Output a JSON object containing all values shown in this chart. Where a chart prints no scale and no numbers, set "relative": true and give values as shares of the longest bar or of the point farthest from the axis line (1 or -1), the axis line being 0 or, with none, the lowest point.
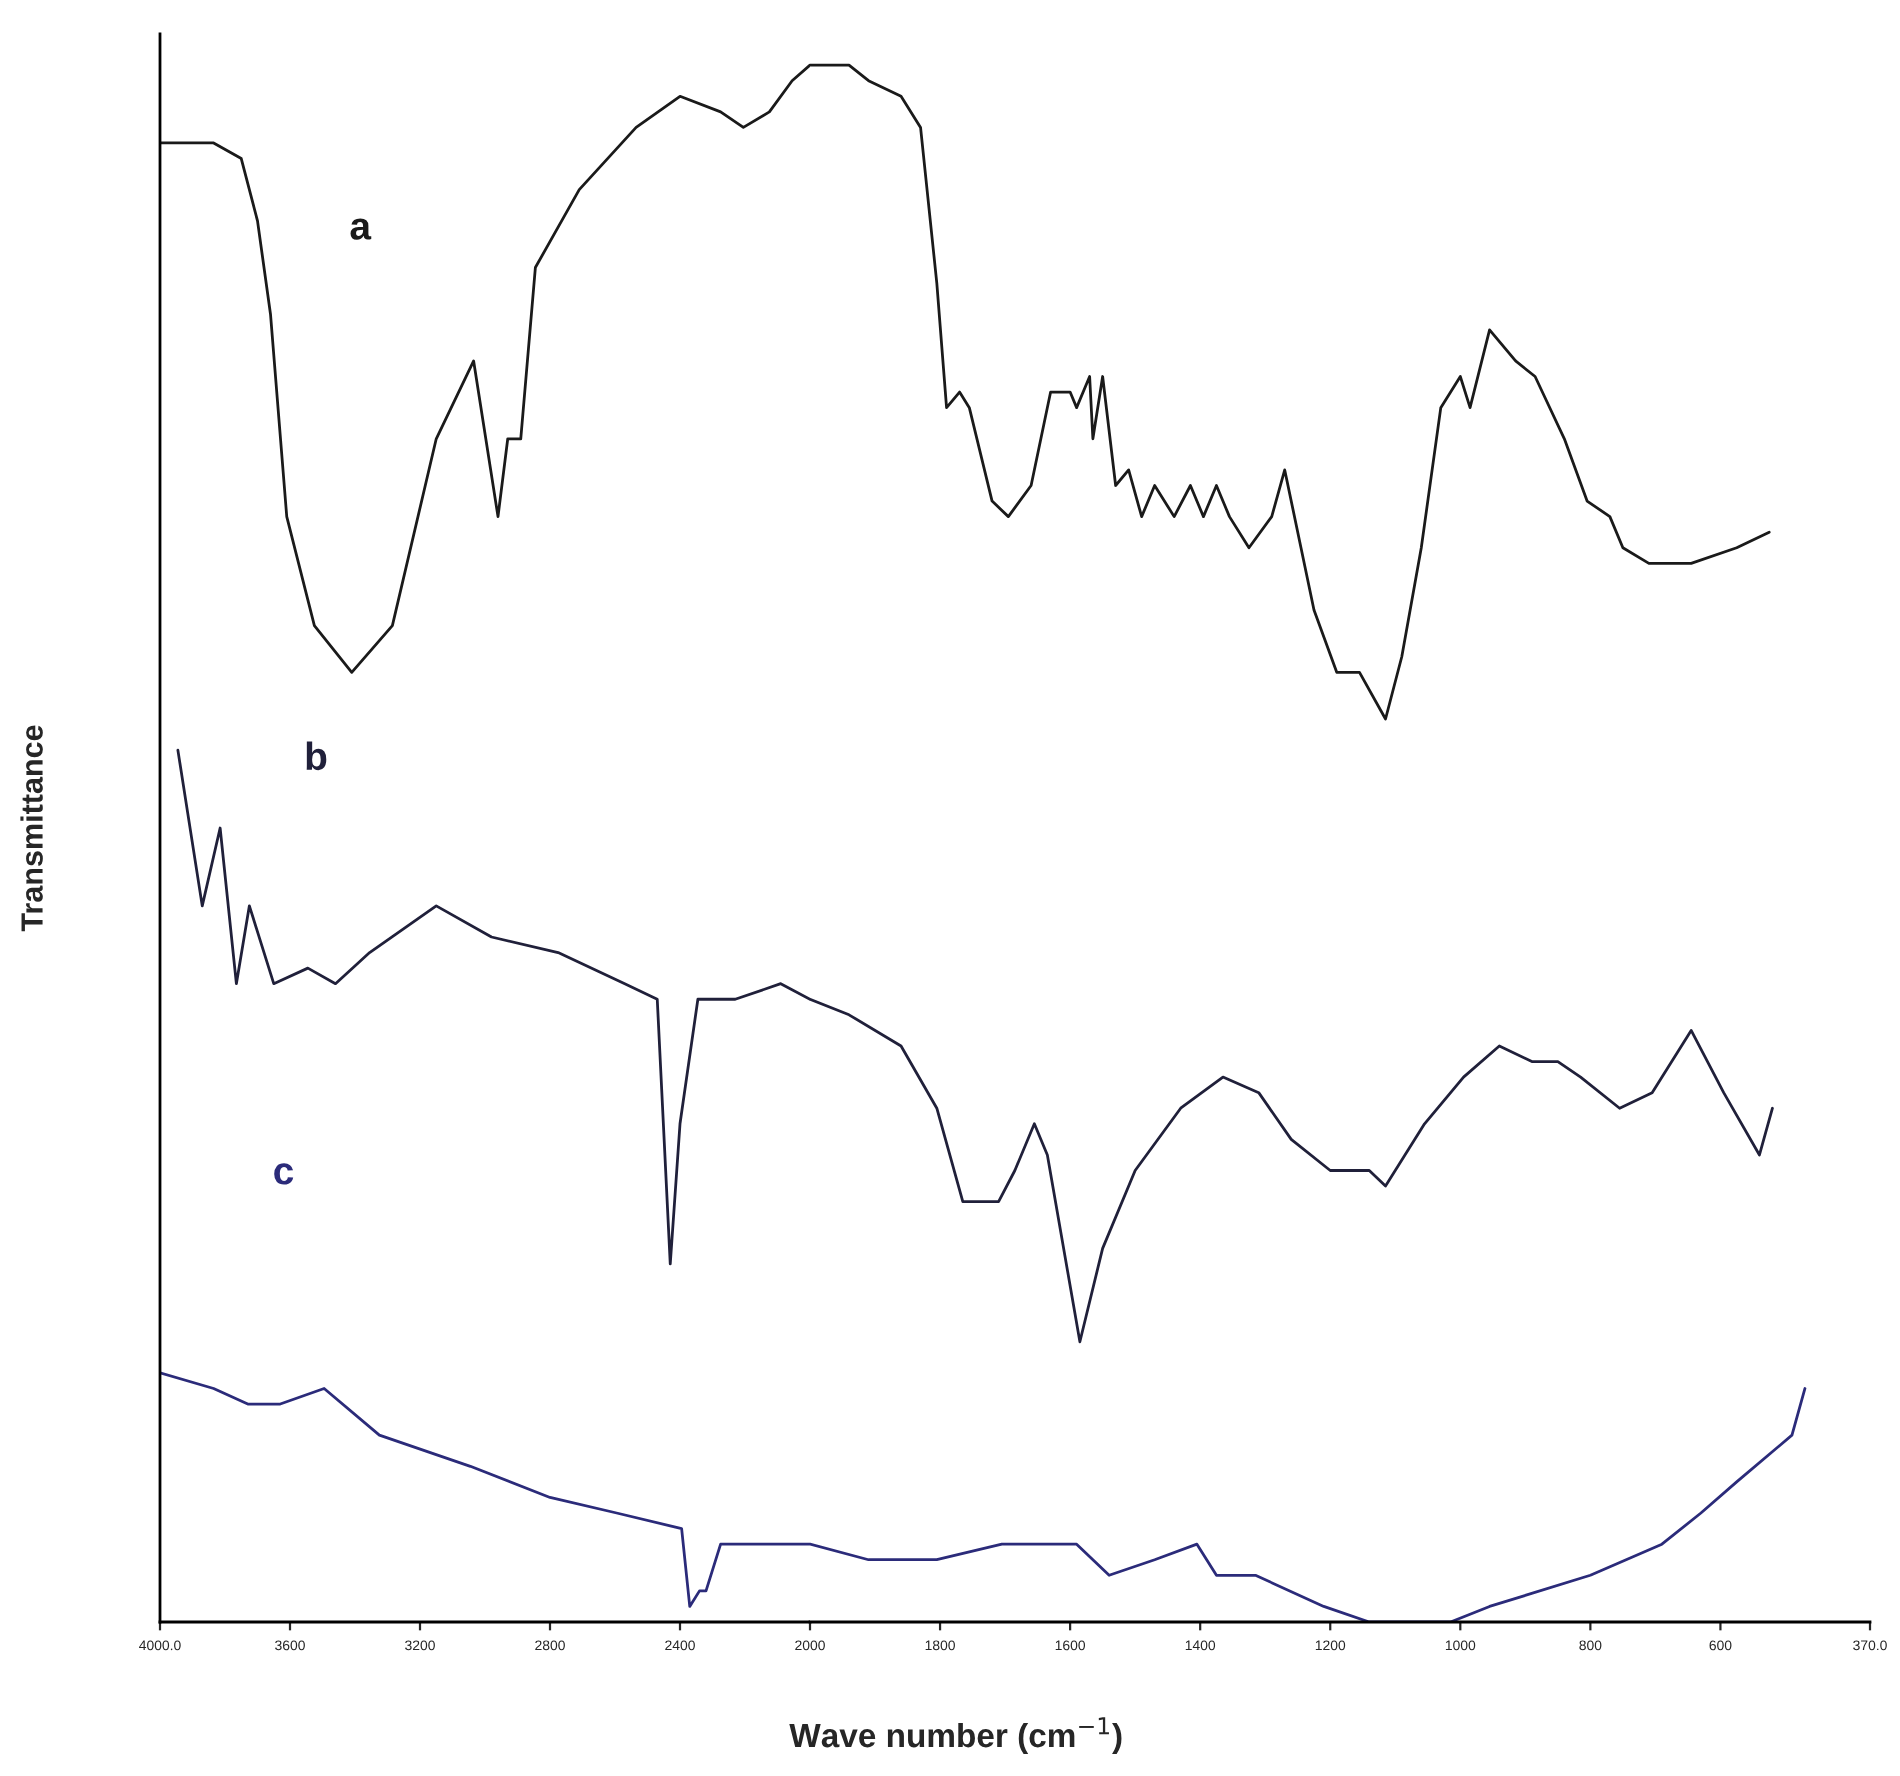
{
  "chart_data": [
    {
      "type": "line",
      "relative": true,
      "grid": false,
      "ylabel": "Transmittance",
      "xlim": [
        4000,
        2000
      ],
      "xticks": [
        {
          "value": 4000,
          "label": "4000.0"
        },
        3600,
        3200,
        2800,
        2400
      ],
      "series": [
        {
          "name": "a",
          "color": "#1a1a1a",
          "x": [
            4000,
            3835,
            3750,
            3700,
            3660,
            3610,
            3525,
            3410,
            3285,
            3150,
            3035,
            2960,
            2930,
            2890,
            2845,
            2710,
            2535,
            2400,
            2275,
            2205,
            2125,
            2055,
            2000
          ],
          "values": [
            0.95,
            0.95,
            0.94,
            0.9,
            0.84,
            0.71,
            0.64,
            0.61,
            0.64,
            0.76,
            0.81,
            0.71,
            0.76,
            0.76,
            0.87,
            0.92,
            0.96,
            0.98,
            0.97,
            0.96,
            0.97,
            0.99,
            1.0
          ]
        },
        {
          "name": "b",
          "color": "#20203a",
          "x": [
            3945,
            3870,
            3815,
            3765,
            3725,
            3650,
            3545,
            3460,
            3355,
            3150,
            2980,
            2775,
            2570,
            2470,
            2430,
            2400,
            2345,
            2230,
            2090,
            2000
          ],
          "values": [
            0.56,
            0.46,
            0.51,
            0.41,
            0.46,
            0.41,
            0.42,
            0.41,
            0.43,
            0.46,
            0.44,
            0.43,
            0.41,
            0.4,
            0.23,
            0.32,
            0.4,
            0.4,
            0.41,
            0.4
          ]
        },
        {
          "name": "c",
          "color": "#2b2b7a",
          "x": [
            4000,
            3835,
            3730,
            3630,
            3495,
            3325,
            3045,
            2800,
            2595,
            2395,
            2370,
            2340,
            2320,
            2275,
            2230,
            2060,
            2000
          ],
          "values": [
            0.16,
            0.15,
            0.14,
            0.14,
            0.15,
            0.12,
            0.1,
            0.08,
            0.07,
            0.06,
            0.01,
            0.02,
            0.02,
            0.05,
            0.05,
            0.05,
            0.05
          ]
        }
      ]
    },
    {
      "type": "line",
      "relative": true,
      "grid": false,
      "xlabel": "Wave number (cm$^{−1}$)",
      "xlim": [
        2000,
        370
      ],
      "xticks": [
        2000,
        1800,
        1600,
        1400,
        1200,
        1000,
        800,
        600,
        {
          "value": 370,
          "label": "370.0"
        }
      ],
      "series": [
        {
          "color": "#1a1a1a",
          "x": [
            2000,
            1940,
            1910,
            1860,
            1830,
            1805,
            1790,
            1770,
            1755,
            1720,
            1695,
            1660,
            1630,
            1600,
            1590,
            1570,
            1565,
            1550,
            1530,
            1510,
            1490,
            1470,
            1440,
            1415,
            1395,
            1375,
            1355,
            1325,
            1290,
            1270,
            1245,
            1225,
            1190,
            1155,
            1115,
            1090,
            1060,
            1030,
            1000,
            985,
            955,
            915,
            885,
            840,
            805,
            770,
            750,
            710,
            645,
            575,
            525
          ],
          "values": [
            1.0,
            1.0,
            0.99,
            0.98,
            0.96,
            0.86,
            0.78,
            0.79,
            0.78,
            0.72,
            0.71,
            0.73,
            0.79,
            0.79,
            0.78,
            0.8,
            0.76,
            0.8,
            0.73,
            0.74,
            0.71,
            0.73,
            0.71,
            0.73,
            0.71,
            0.73,
            0.71,
            0.69,
            0.71,
            0.74,
            0.69,
            0.65,
            0.61,
            0.61,
            0.58,
            0.62,
            0.69,
            0.78,
            0.8,
            0.78,
            0.83,
            0.81,
            0.8,
            0.76,
            0.72,
            0.71,
            0.69,
            0.68,
            0.68,
            0.69,
            0.7
          ]
        },
        {
          "color": "#20203a",
          "x": [
            2000,
            1940,
            1860,
            1805,
            1765,
            1710,
            1685,
            1655,
            1635,
            1585,
            1550,
            1500,
            1430,
            1365,
            1310,
            1260,
            1200,
            1140,
            1115,
            1055,
            995,
            940,
            890,
            850,
            815,
            755,
            705,
            645,
            595,
            540,
            520
          ],
          "values": [
            0.4,
            0.39,
            0.37,
            0.33,
            0.27,
            0.27,
            0.29,
            0.32,
            0.3,
            0.18,
            0.24,
            0.29,
            0.33,
            0.35,
            0.34,
            0.31,
            0.29,
            0.29,
            0.28,
            0.32,
            0.35,
            0.37,
            0.36,
            0.36,
            0.35,
            0.33,
            0.34,
            0.38,
            0.34,
            0.3,
            0.33
          ]
        },
        {
          "color": "#2b2b7a",
          "x": [
            2000,
            1910,
            1805,
            1705,
            1645,
            1590,
            1540,
            1470,
            1405,
            1375,
            1315,
            1210,
            1140,
            1015,
            955,
            800,
            690,
            630,
            575,
            490,
            470
          ],
          "values": [
            0.05,
            0.04,
            0.04,
            0.05,
            0.05,
            0.05,
            0.03,
            0.04,
            0.05,
            0.03,
            0.03,
            0.01,
            0.0,
            0.0,
            0.01,
            0.03,
            0.05,
            0.07,
            0.09,
            0.12,
            0.15
          ]
        }
      ]
    }
  ]
}
